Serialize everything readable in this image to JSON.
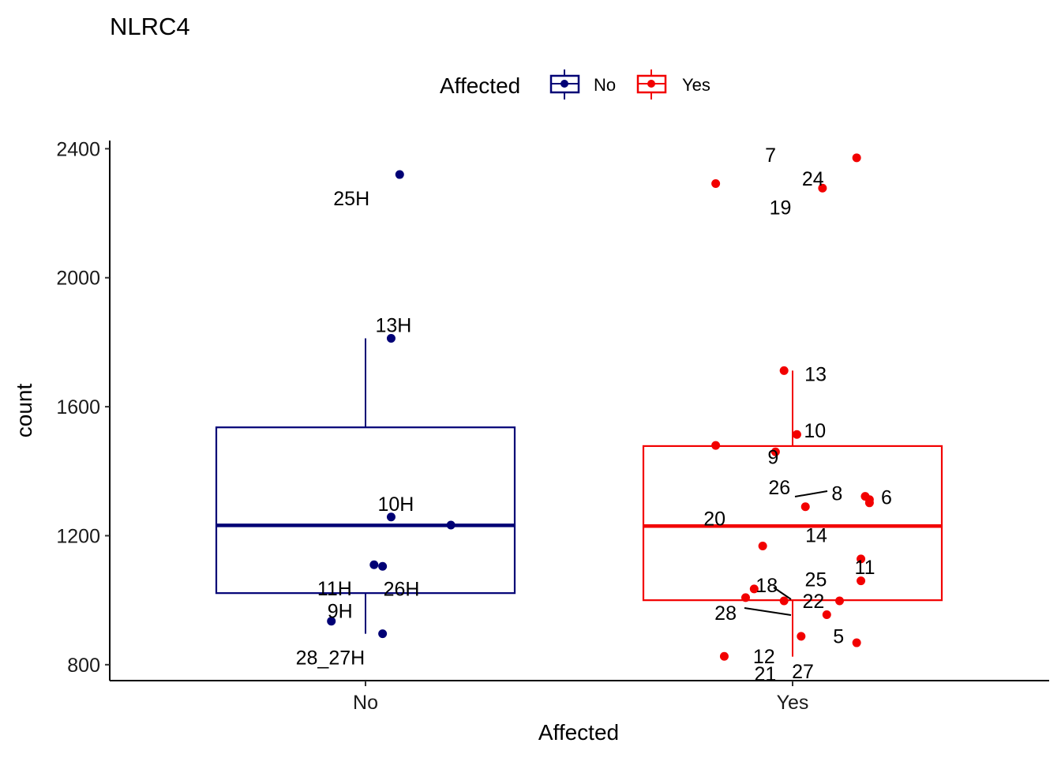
{
  "chart_data": {
    "type": "box",
    "title": "NLRC4",
    "xlabel": "Affected",
    "ylabel": "count",
    "ylim": [
      780,
      2445
    ],
    "yticks": [
      "800",
      "1200",
      "1600",
      "2000",
      "2400"
    ],
    "categories": [
      "No",
      "Yes"
    ],
    "legend": {
      "title": "Affected",
      "position": "top",
      "entries": [
        {
          "label": "No",
          "color": "#000075"
        },
        {
          "label": "Yes",
          "color": "#f20000"
        }
      ]
    },
    "series": [
      {
        "name": "No",
        "color": "#000075",
        "box": {
          "q1": 1022,
          "median": 1232,
          "q3": 1536,
          "whisker_low": 896,
          "whisker_high": 1812
        },
        "points": [
          {
            "x": 0.08,
            "y": 2320,
            "label": "25H"
          },
          {
            "x": 0.06,
            "y": 1812,
            "label": "13H"
          },
          {
            "x": 0.06,
            "y": 1258,
            "label": "10H"
          },
          {
            "x": 0.2,
            "y": 1233,
            "label": ""
          },
          {
            "x": 0.02,
            "y": 1110,
            "label": "11H"
          },
          {
            "x": 0.04,
            "y": 1105,
            "label": "26H"
          },
          {
            "x": -0.08,
            "y": 935,
            "label": "9H"
          },
          {
            "x": 0.04,
            "y": 896,
            "label": "28_27H"
          }
        ]
      },
      {
        "name": "Yes",
        "color": "#f20000",
        "box": {
          "q1": 1000,
          "median": 1230,
          "q3": 1478,
          "whisker_low": 825,
          "whisker_high": 1712
        },
        "points": [
          {
            "x": 0.15,
            "y": 2372,
            "label": "7"
          },
          {
            "x": 0.07,
            "y": 2278,
            "label": "24"
          },
          {
            "x": -0.18,
            "y": 2292,
            "label": "19"
          },
          {
            "x": -0.02,
            "y": 1712,
            "label": "13"
          },
          {
            "x": 0.01,
            "y": 1514,
            "label": "10"
          },
          {
            "x": -0.18,
            "y": 1480,
            "label": ""
          },
          {
            "x": -0.04,
            "y": 1460,
            "label": "9"
          },
          {
            "x": 0.17,
            "y": 1322,
            "label": "6"
          },
          {
            "x": 0.18,
            "y": 1312,
            "label": "8"
          },
          {
            "x": 0.18,
            "y": 1302,
            "label": "26"
          },
          {
            "x": 0.03,
            "y": 1290,
            "label": "20"
          },
          {
            "x": -0.07,
            "y": 1168,
            "label": "14"
          },
          {
            "x": 0.16,
            "y": 1128,
            "label": "11"
          },
          {
            "x": 0.16,
            "y": 1060,
            "label": "25"
          },
          {
            "x": -0.09,
            "y": 1035,
            "label": "18"
          },
          {
            "x": 0.11,
            "y": 998,
            "label": "22"
          },
          {
            "x": -0.11,
            "y": 1008,
            "label": ""
          },
          {
            "x": -0.02,
            "y": 998,
            "label": "28"
          },
          {
            "x": 0.08,
            "y": 955,
            "label": "5"
          },
          {
            "x": 0.02,
            "y": 888,
            "label": "12"
          },
          {
            "x": 0.15,
            "y": 868,
            "label": "27"
          },
          {
            "x": -0.16,
            "y": 826,
            "label": "21"
          }
        ]
      }
    ]
  }
}
